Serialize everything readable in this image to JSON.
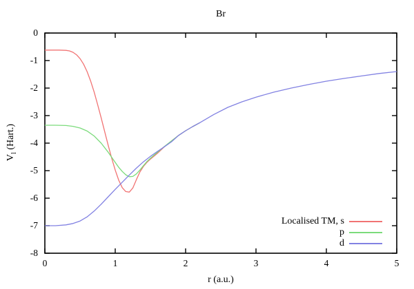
{
  "chart_data": {
    "type": "line",
    "title": "Br",
    "xlabel": "r (a.u.)",
    "ylabel": {
      "main": "V",
      "sub": "l",
      "rest": " (Hart.)"
    },
    "xlim": [
      0,
      5
    ],
    "ylim": [
      -8,
      0
    ],
    "xticks": [
      0,
      1,
      2,
      3,
      4,
      5
    ],
    "yticks": [
      0,
      -1,
      -2,
      -3,
      -4,
      -5,
      -6,
      -7,
      -8
    ],
    "grid": false,
    "legend_position": "bottom-right",
    "axis_color": "#000000",
    "background_color": "#ffffff",
    "series": [
      {
        "name": "Localised TM, s",
        "color": "#f17373",
        "x": [
          0,
          0.1,
          0.2,
          0.3,
          0.35,
          0.4,
          0.45,
          0.5,
          0.55,
          0.6,
          0.65,
          0.7,
          0.75,
          0.8,
          0.85,
          0.9,
          0.95,
          1.0,
          1.05,
          1.1,
          1.15,
          1.2,
          1.25,
          1.3,
          1.35,
          1.4,
          1.45,
          1.5,
          1.6,
          1.7,
          1.8,
          1.9,
          2.0,
          2.1,
          2.2
        ],
        "y": [
          -0.62,
          -0.62,
          -0.62,
          -0.63,
          -0.65,
          -0.7,
          -0.79,
          -0.93,
          -1.13,
          -1.4,
          -1.74,
          -2.14,
          -2.6,
          -3.08,
          -3.58,
          -4.08,
          -4.55,
          -4.98,
          -5.35,
          -5.62,
          -5.76,
          -5.78,
          -5.63,
          -5.33,
          -5.05,
          -4.85,
          -4.7,
          -4.58,
          -4.37,
          -4.13,
          -3.92,
          -3.72,
          -3.55,
          -3.4,
          -3.26
        ]
      },
      {
        "name": "p",
        "color": "#7bdb7b",
        "x": [
          0,
          0.15,
          0.3,
          0.4,
          0.5,
          0.6,
          0.7,
          0.8,
          0.9,
          1.0,
          1.05,
          1.1,
          1.15,
          1.2,
          1.25,
          1.3,
          1.35,
          1.4,
          1.45,
          1.5,
          1.6,
          1.7,
          1.8,
          1.9,
          2.0,
          2.1,
          2.2
        ],
        "y": [
          -3.35,
          -3.35,
          -3.36,
          -3.39,
          -3.45,
          -3.56,
          -3.74,
          -4.0,
          -4.33,
          -4.7,
          -4.88,
          -5.03,
          -5.15,
          -5.22,
          -5.21,
          -5.12,
          -4.98,
          -4.82,
          -4.67,
          -4.55,
          -4.33,
          -4.12,
          -3.92,
          -3.72,
          -3.55,
          -3.4,
          -3.26
        ]
      },
      {
        "name": "d",
        "color": "#8181e2",
        "x": [
          0,
          0.15,
          0.3,
          0.4,
          0.5,
          0.6,
          0.7,
          0.8,
          0.9,
          1.0,
          1.1,
          1.2,
          1.3,
          1.4,
          1.5,
          1.6,
          1.7,
          1.8,
          1.9,
          2.0,
          2.1,
          2.2,
          2.4,
          2.6,
          2.8,
          3.0,
          3.25,
          3.5,
          3.75,
          4.0,
          4.25,
          4.5,
          4.75,
          5.0
        ],
        "y": [
          -7.0,
          -7.0,
          -6.97,
          -6.92,
          -6.83,
          -6.68,
          -6.47,
          -6.22,
          -5.95,
          -5.68,
          -5.42,
          -5.16,
          -4.91,
          -4.68,
          -4.48,
          -4.3,
          -4.13,
          -3.95,
          -3.72,
          -3.55,
          -3.4,
          -3.26,
          -2.96,
          -2.7,
          -2.5,
          -2.33,
          -2.15,
          -2.0,
          -1.87,
          -1.75,
          -1.65,
          -1.56,
          -1.47,
          -1.4
        ]
      }
    ]
  }
}
